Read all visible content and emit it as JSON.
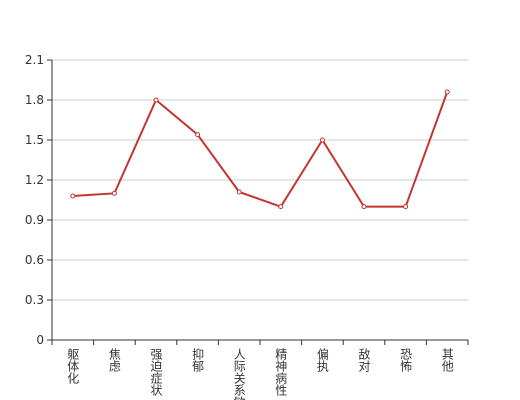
{
  "chart_data": {
    "type": "line",
    "categories": [
      "躯体化",
      "焦虑",
      "强迫症状",
      "抑郁",
      "人际关系敏感",
      "精神病性",
      "偏执",
      "敌对",
      "恐怖",
      "其他"
    ],
    "values": [
      1.08,
      1.1,
      1.8,
      1.54,
      1.11,
      1.0,
      1.5,
      1.0,
      1.0,
      1.86
    ],
    "color": "#c23531",
    "ylim": [
      0,
      2.1
    ],
    "yticks": [
      0,
      0.3,
      0.6,
      0.9,
      1.2,
      1.5,
      1.8,
      2.1
    ],
    "grid": true
  }
}
